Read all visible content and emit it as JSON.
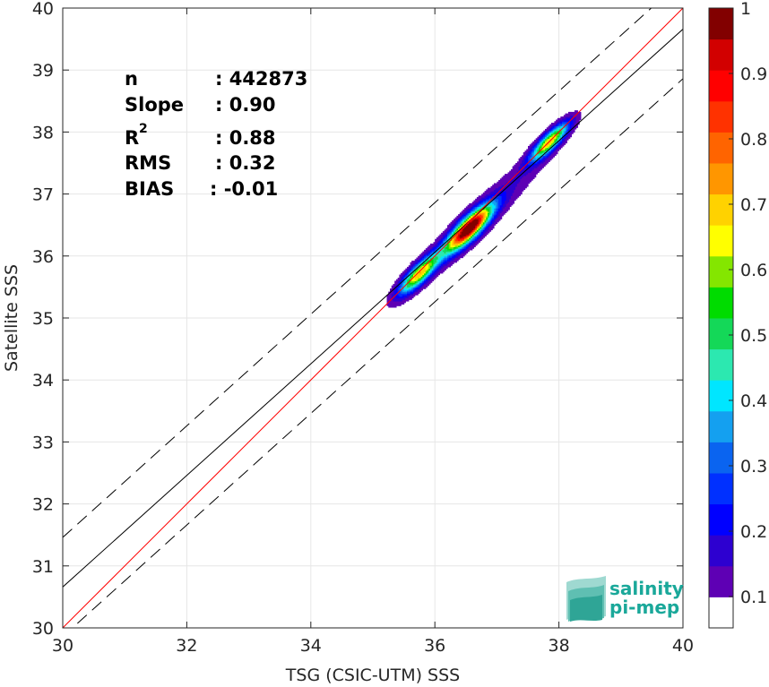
{
  "chart_data": {
    "type": "heatmap",
    "title": "",
    "xlabel": "TSG (CSIC-UTM) SSS",
    "ylabel": "Satellite SSS",
    "xlim": [
      30,
      40
    ],
    "ylim": [
      30,
      40
    ],
    "xticks": [
      "30",
      "32",
      "34",
      "36",
      "38",
      "40"
    ],
    "yticks": [
      "30",
      "31",
      "32",
      "33",
      "34",
      "35",
      "36",
      "37",
      "38",
      "39",
      "40"
    ],
    "grid": true,
    "stats": [
      {
        "label": "n",
        "value": ": 442873"
      },
      {
        "label": "Slope",
        "value": ": 0.90"
      },
      {
        "label": "R",
        "sup": "2",
        "value": ": 0.88"
      },
      {
        "label": "RMS",
        "value": ": 0.32"
      },
      {
        "label": "BIAS",
        "value": ": -0.01"
      }
    ],
    "lines": {
      "identity": {
        "slope": 1.0,
        "intercept": 0.0,
        "color": "#ff0000"
      },
      "regression": {
        "slope": 0.9,
        "intercept": 3.66,
        "color": "#000000"
      },
      "upper_bound": {
        "slope": 0.9,
        "intercept": 4.46,
        "dashed": true
      },
      "lower_bound": {
        "slope": 0.9,
        "intercept": 2.86,
        "dashed": true
      }
    },
    "density_peaks": [
      {
        "x": 35.75,
        "y": 35.72,
        "value": 0.65
      },
      {
        "x": 36.55,
        "y": 36.45,
        "value": 1.0
      },
      {
        "x": 37.85,
        "y": 37.85,
        "value": 0.65
      }
    ],
    "colorbar": {
      "ticks": [
        "0.1",
        "0.2",
        "0.3",
        "0.4",
        "0.5",
        "0.6",
        "0.7",
        "0.8",
        "0.9",
        "1"
      ],
      "colors": [
        "#ffffff",
        "#5e00b4",
        "#2d00d0",
        "#0000ff",
        "#0030ff",
        "#0a64f0",
        "#14a0f0",
        "#00e6ff",
        "#2ce8b0",
        "#14d858",
        "#00dc00",
        "#84e600",
        "#ffff00",
        "#ffd200",
        "#ff9600",
        "#ff6400",
        "#ff3200",
        "#ff0000",
        "#d20000",
        "#820000"
      ]
    }
  },
  "logo": {
    "line1": "salinity",
    "line2": "pi-mep"
  }
}
